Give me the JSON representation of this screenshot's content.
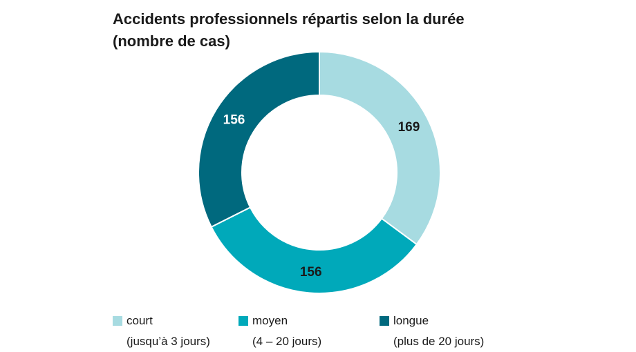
{
  "title_line1": "Accidents professionnels répartis selon la durée",
  "title_line2": "(nombre de cas)",
  "chart_data": {
    "type": "pie",
    "variant": "donut",
    "start_angle_deg": 0,
    "direction": "clockwise",
    "slices": [
      {
        "label": "court",
        "sublabel": "(jusqu’à 3 jours)",
        "value": 169,
        "display": "169",
        "color": "#a7dbe1",
        "label_color": "#1a1a1a"
      },
      {
        "label": "moyen",
        "sublabel": "(4 – 20 jours)",
        "value": 156,
        "display": "156",
        "color": "#00a9ba",
        "label_color": "#1a1a1a"
      },
      {
        "label": "longue",
        "sublabel": "(plus de 20 jours)",
        "value": 156,
        "display": "156",
        "color": "#00697e",
        "label_color": "#ffffff"
      }
    ],
    "legend_position": "bottom"
  }
}
